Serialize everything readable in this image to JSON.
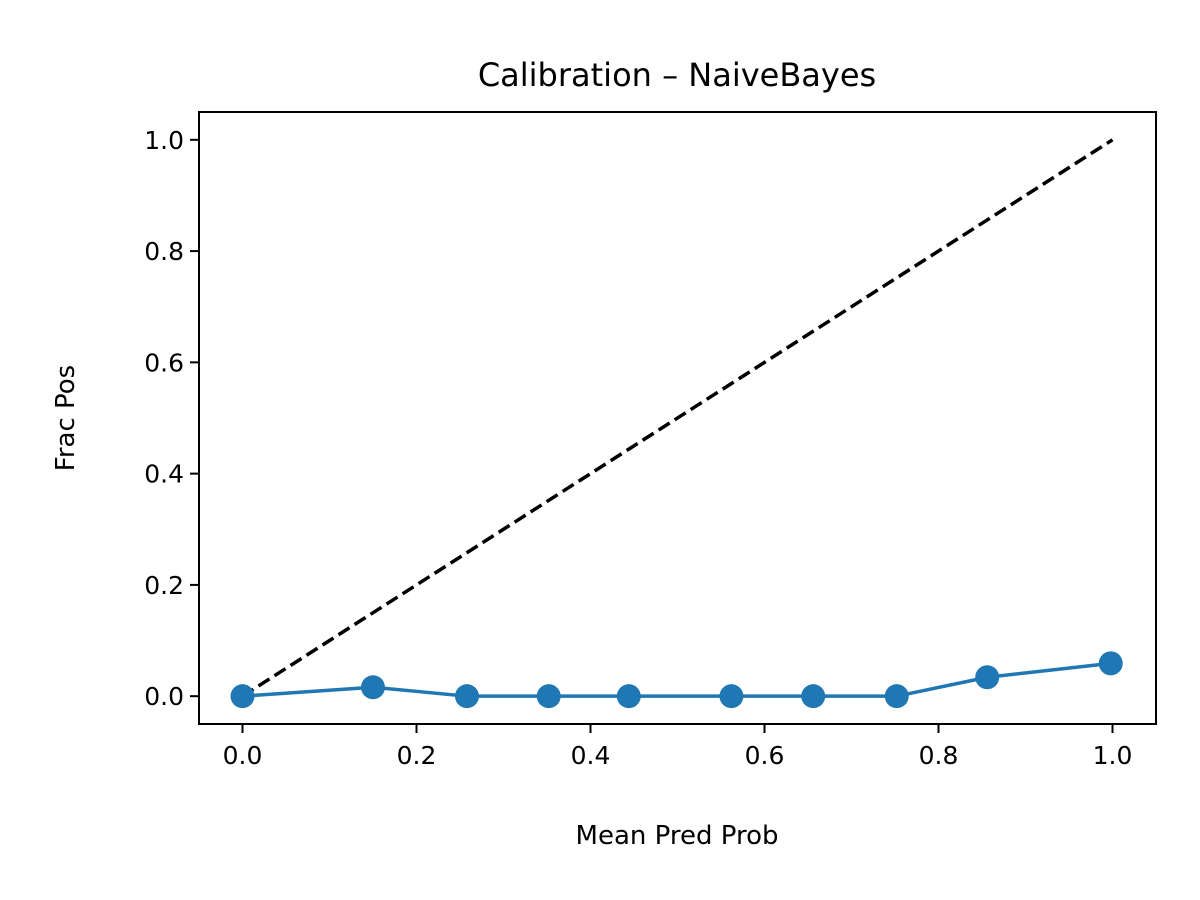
{
  "chart_data": {
    "type": "line",
    "title": "Calibration – NaiveBayes",
    "xlabel": "Mean Pred Prob",
    "ylabel": "Frac Pos",
    "xlim": [
      -0.05,
      1.05
    ],
    "ylim": [
      -0.05,
      1.05
    ],
    "x_ticks": [
      0.0,
      0.2,
      0.4,
      0.6,
      0.8,
      1.0
    ],
    "y_ticks": [
      0.0,
      0.2,
      0.4,
      0.6,
      0.8,
      1.0
    ],
    "x_tick_labels": [
      "0.0",
      "0.2",
      "0.4",
      "0.6",
      "0.8",
      "1.0"
    ],
    "y_tick_labels": [
      "0.0",
      "0.2",
      "0.4",
      "0.6",
      "0.8",
      "1.0"
    ],
    "grid": false,
    "series": [
      {
        "x": [
          0.0,
          0.15,
          0.258,
          0.352,
          0.444,
          0.562,
          0.656,
          0.752,
          0.856,
          0.998
        ],
        "y": [
          0.0,
          0.016,
          0.0,
          0.0,
          0.0,
          0.0,
          0.0,
          0.0,
          0.034,
          0.059
        ],
        "color": "#1f77b4",
        "marker": "circle",
        "style": "solid"
      },
      {
        "x": [
          0.0,
          1.0
        ],
        "y": [
          0.0,
          1.0
        ],
        "color": "#000000",
        "style": "dashed"
      }
    ]
  }
}
